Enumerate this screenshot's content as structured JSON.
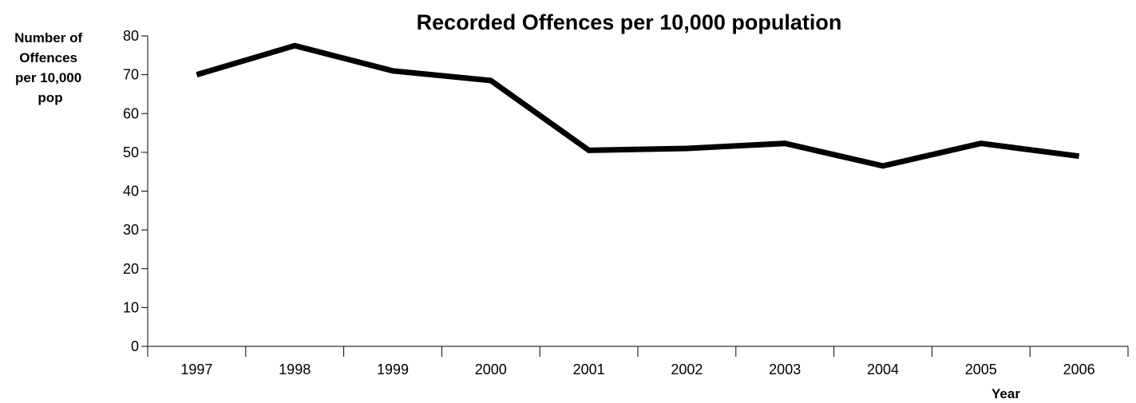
{
  "chart_data": {
    "type": "line",
    "title": "Recorded Offences per 10,000 population",
    "xlabel": "Year",
    "ylabel": "Number of Offences per 10,000 pop",
    "ylabel_lines": [
      "Number of",
      "Offences",
      "per 10,000",
      "pop"
    ],
    "categories": [
      "1997",
      "1998",
      "1999",
      "2000",
      "2001",
      "2002",
      "2003",
      "2004",
      "2005",
      "2006"
    ],
    "values": [
      70,
      77.5,
      71,
      68.5,
      50.5,
      51,
      52.3,
      46.5,
      52.3,
      49
    ],
    "ylim": [
      0,
      80
    ],
    "yticks": [
      0,
      10,
      20,
      30,
      40,
      50,
      60,
      70,
      80
    ],
    "grid": false,
    "legend": "none",
    "line_color": "#000000"
  }
}
